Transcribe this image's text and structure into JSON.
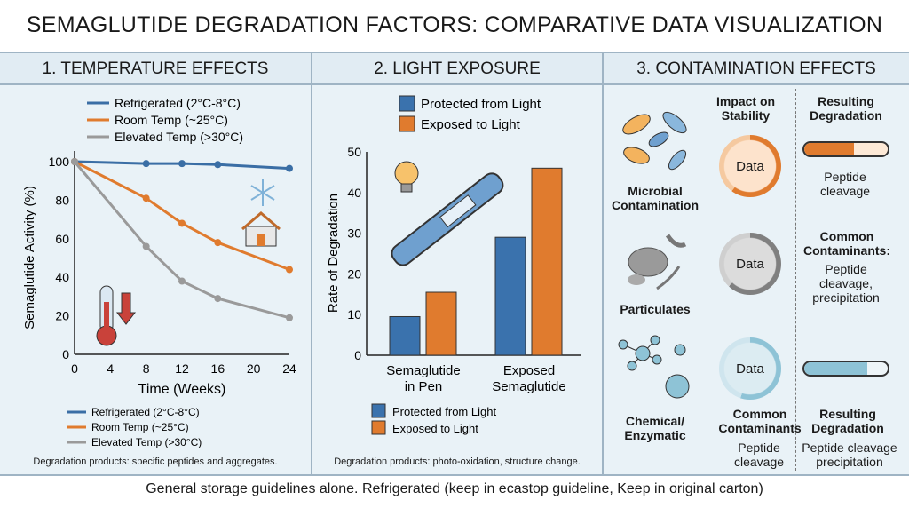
{
  "title": "SEMAGLUTIDE DEGRADATION FACTORS: COMPARATIVE DATA VISUALIZATION",
  "panels": {
    "temperature": {
      "header": "1. TEMPERATURE EFFECTS",
      "note": "Degradation products: specific peptides and aggregates."
    },
    "light": {
      "header": "2. LIGHT EXPOSURE",
      "note": "Degradation products: photo-oxidation, structure change."
    },
    "contamination": {
      "header": "3. CONTAMINATION EFFECTS",
      "col_impact": "Impact on Stability",
      "col_result": "Resulting Degradation",
      "rows": [
        {
          "label": "Microbial Contamination",
          "ring": "Data",
          "ring_color": "#e07b2e",
          "ring_fill": 0.6,
          "result_title": "",
          "result_text": "Peptide cleavage",
          "bar_fill": 0.6,
          "bar_color": "#e07b2e"
        },
        {
          "label": "Particulates",
          "ring": "Data",
          "ring_color": "#808080",
          "ring_fill": 0.62,
          "result_title": "Common Contaminants:",
          "result_text": "Peptide cleavage, precipitation"
        },
        {
          "label": "Chemical/ Enzymatic",
          "ring": "Data",
          "ring_color": "#8ec3d6",
          "ring_fill": 0.55,
          "result_title": "Resulting Degradation",
          "result_text": "Peptide cleavage precipitation",
          "bar_fill": 0.75,
          "bar_color": "#8ec3d6",
          "sub_title": "Common Contaminants",
          "sub_text": "Peptide cleavage"
        }
      ]
    }
  },
  "footer": "General storage guidelines alone. Refrigerated (keep in ecastop guideline, Keep in original carton)",
  "chart_data": [
    {
      "type": "line",
      "xlabel": "Time (Weeks)",
      "ylabel": "Semaglutide Activity (%)",
      "xlim": [
        0,
        24
      ],
      "ylim": [
        0,
        100
      ],
      "xticks": [
        0,
        4,
        8,
        12,
        16,
        20,
        24
      ],
      "yticks": [
        0,
        20,
        40,
        60,
        80,
        100
      ],
      "legend": "top and bottom",
      "x": [
        0,
        8,
        12,
        16,
        24
      ],
      "series": [
        {
          "name": "Refrigerated (2°C-8°C)",
          "color": "#3a6ea5",
          "values": [
            100,
            99,
            99,
            98.5,
            96.5
          ]
        },
        {
          "name": "Room Temp (~25°C)",
          "color": "#e07b2e",
          "values": [
            100,
            81,
            68,
            58,
            44
          ]
        },
        {
          "name": "Elevated Temp (>30°C)",
          "color": "#9a9a9a",
          "values": [
            100,
            56,
            38,
            29,
            19
          ]
        }
      ]
    },
    {
      "type": "bar",
      "ylabel": "Rate of Degradation",
      "ylim": [
        0,
        50
      ],
      "yticks": [
        0,
        10,
        20,
        30,
        40,
        50
      ],
      "legend": "top and bottom",
      "categories": [
        "Semaglutide in Pen",
        "Exposed Semaglutide"
      ],
      "series": [
        {
          "name": "Protected from Light",
          "color": "#3a72ad",
          "values": [
            9.5,
            29
          ]
        },
        {
          "name": "Exposed to Light",
          "color": "#e07b2e",
          "values": [
            15.5,
            46
          ]
        }
      ]
    }
  ]
}
